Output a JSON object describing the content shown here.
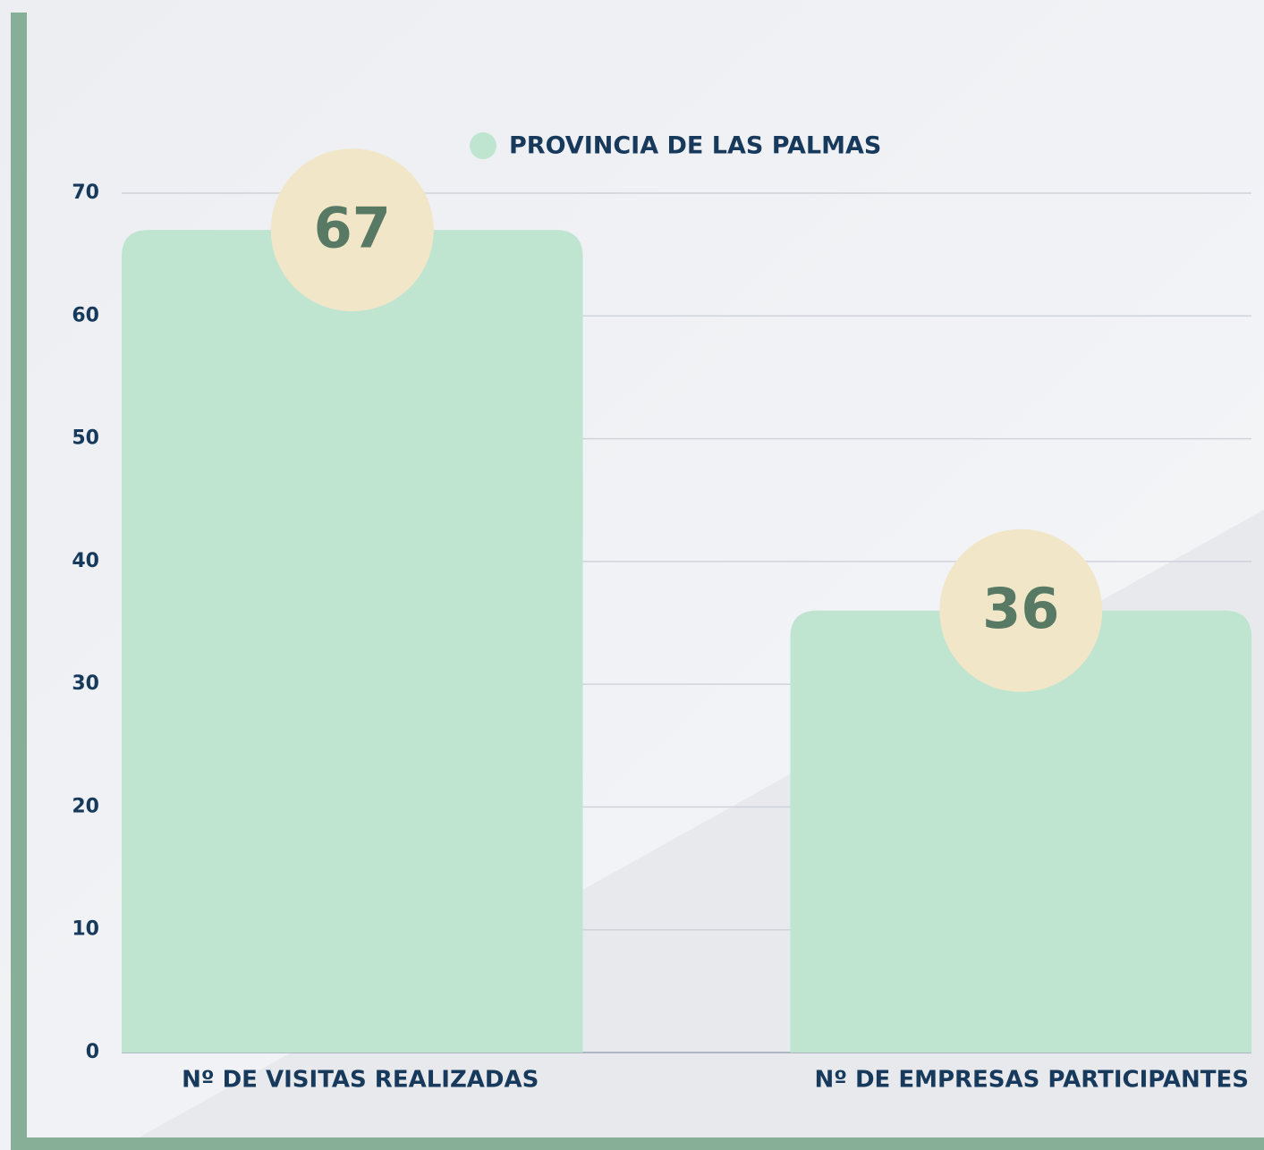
{
  "chart_data": {
    "type": "bar",
    "categories": [
      "Nº DE VISITAS REALIZADAS",
      "Nº DE EMPRESAS PARTICIPANTES"
    ],
    "series": [
      {
        "name": "PROVINCIA DE LAS PALMAS",
        "color": "#bfe5d1",
        "values": [
          67,
          36
        ]
      }
    ],
    "ylim": [
      0,
      70
    ],
    "yticks": [
      0,
      10,
      20,
      30,
      40,
      50,
      60,
      70
    ],
    "grid": true,
    "legend": "top"
  }
}
